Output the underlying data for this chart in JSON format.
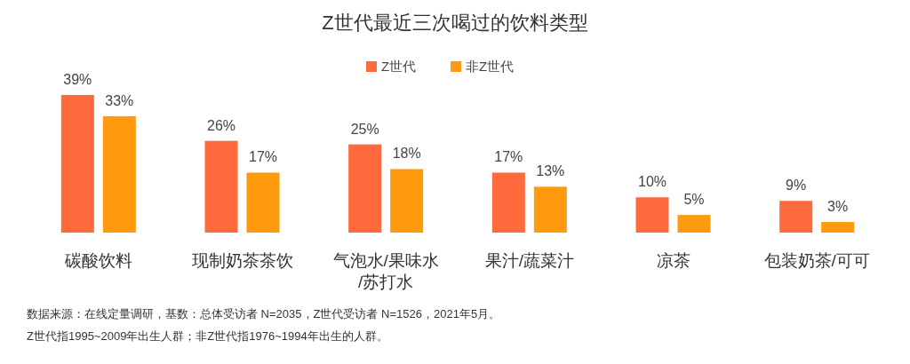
{
  "chart_data": {
    "type": "bar",
    "title": "Z世代最近三次喝过的饮料类型",
    "categories": [
      "碳酸饮料",
      "现制奶茶茶饮",
      "气泡水/果味水/苏打水",
      "果汁/蔬菜汁",
      "凉茶",
      "包装奶茶/可可"
    ],
    "series": [
      {
        "name": "Z世代",
        "color": "#ff6a3c",
        "values": [
          39,
          26,
          25,
          17,
          10,
          9
        ],
        "value_labels": [
          "39%",
          "26%",
          "25%",
          "17%",
          "10%",
          "9%"
        ]
      },
      {
        "name": "非Z世代",
        "color": "#ff9a0f",
        "values": [
          33,
          17,
          18,
          13,
          5,
          3
        ],
        "value_labels": [
          "33%",
          "17%",
          "18%",
          "13%",
          "5%",
          "3%"
        ]
      }
    ],
    "tick_labels": "x",
    "legend": "top",
    "annotations": [
      "数据来源：在线定量调研，基数：总体受访者 N=2035，Z世代受访者 N=1526，2021年5月。",
      "Z世代指1995~2009年出生人群；非Z世代指1976~1994年出生的人群。"
    ]
  }
}
